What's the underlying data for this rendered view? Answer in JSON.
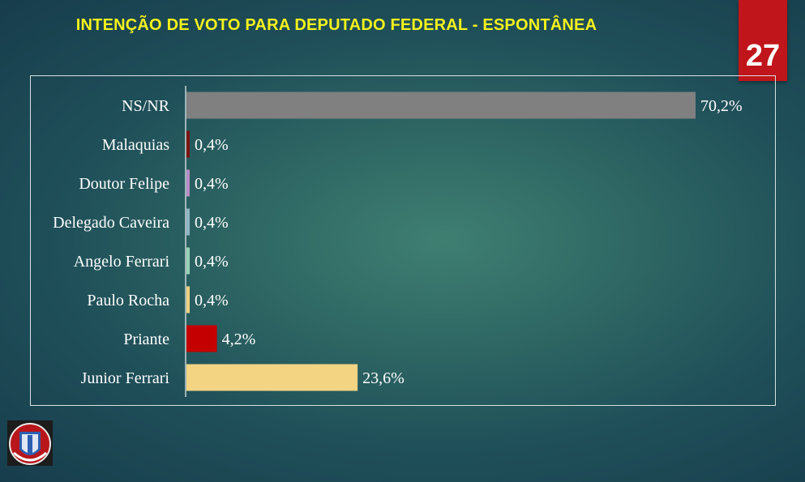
{
  "header": {
    "title": "INTENÇÃO DE VOTO PARA DEPUTADO FEDERAL - ESPONTÂNEA",
    "page_number": "27"
  },
  "colors": {
    "title": "#f4f21c",
    "badge": "#c0151a"
  },
  "chart_data": {
    "type": "bar",
    "orientation": "horizontal",
    "title": "INTENÇÃO DE VOTO PARA DEPUTADO FEDERAL - ESPONTÂNEA",
    "categories": [
      "NS/NR",
      "Malaquias",
      "Doutor Felipe",
      "Delegado Caveira",
      "Angelo Ferrari",
      "Paulo Rocha",
      "Priante",
      "Junior Ferrari"
    ],
    "values": [
      70.2,
      0.4,
      0.4,
      0.4,
      0.4,
      0.4,
      4.2,
      23.6
    ],
    "value_labels": [
      "70,2%",
      "0,4%",
      "0,4%",
      "0,4%",
      "0,4%",
      "0,4%",
      "4,2%",
      "23,6%"
    ],
    "bar_colors": [
      "#808080",
      "#7a1410",
      "#b98bc6",
      "#8fb6c4",
      "#98d2b6",
      "#f0d080",
      "#c40000",
      "#f2d483"
    ],
    "xlim": [
      0,
      70.2
    ],
    "grid": false,
    "legend": "none"
  }
}
